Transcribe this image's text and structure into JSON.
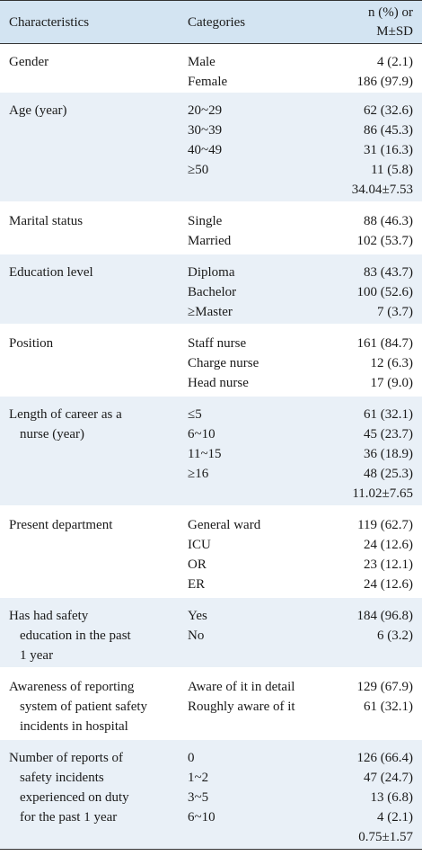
{
  "header": {
    "characteristics": "Characteristics",
    "categories": "Categories",
    "value_line1": "n (%) or",
    "value_line2": "M±SD"
  },
  "rows": [
    {
      "characteristic": [
        "Gender"
      ],
      "categories": [
        "Male",
        "Female"
      ],
      "values": [
        "4 (2.1)",
        "186 (97.9)"
      ],
      "shaded": false
    },
    {
      "characteristic": [
        "Age (year)"
      ],
      "categories": [
        "20~29",
        "30~39",
        "40~49",
        "≥50",
        ""
      ],
      "values": [
        "62 (32.6)",
        "86 (45.3)",
        "31 (16.3)",
        "11 (5.8)",
        "34.04±7.53"
      ],
      "shaded": true
    },
    {
      "characteristic": [
        "Marital status"
      ],
      "categories": [
        "Single",
        "Married"
      ],
      "values": [
        "88 (46.3)",
        "102 (53.7)"
      ],
      "shaded": false
    },
    {
      "characteristic": [
        "Education level"
      ],
      "categories": [
        "Diploma",
        "Bachelor",
        "≥Master"
      ],
      "values": [
        "83 (43.7)",
        "100 (52.6)",
        "7 (3.7)"
      ],
      "shaded": true
    },
    {
      "characteristic": [
        "Position"
      ],
      "categories": [
        "Staff nurse",
        "Charge nurse",
        "Head nurse"
      ],
      "values": [
        "161 (84.7)",
        "12 (6.3)",
        "17 (9.0)"
      ],
      "shaded": false
    },
    {
      "characteristic": [
        "Length of career as a",
        "nurse (year)"
      ],
      "categories": [
        "≤5",
        "6~10",
        "11~15",
        "≥16",
        ""
      ],
      "values": [
        "61 (32.1)",
        "45 (23.7)",
        "36 (18.9)",
        "48 (25.3)",
        "11.02±7.65"
      ],
      "shaded": true
    },
    {
      "characteristic": [
        "Present department"
      ],
      "categories": [
        "General ward",
        "ICU",
        "OR",
        "ER"
      ],
      "values": [
        "119 (62.7)",
        "24 (12.6)",
        "23 (12.1)",
        "24 (12.6)"
      ],
      "shaded": false
    },
    {
      "characteristic": [
        "Has had safety",
        "education in the past",
        "1 year"
      ],
      "categories": [
        "Yes",
        "No"
      ],
      "values": [
        "184 (96.8)",
        "6 (3.2)"
      ],
      "shaded": true
    },
    {
      "characteristic": [
        "Awareness of reporting",
        "system of patient safety",
        "incidents in hospital"
      ],
      "categories": [
        "Aware of it in detail",
        "Roughly aware of it"
      ],
      "values": [
        "129 (67.9)",
        "61 (32.1)"
      ],
      "shaded": false
    },
    {
      "characteristic": [
        "Number of reports of",
        "safety incidents",
        "experienced on duty",
        "for the past 1 year"
      ],
      "categories": [
        "0",
        "1~2",
        "3~5",
        "6~10",
        ""
      ],
      "values": [
        "126 (66.4)",
        "47 (24.7)",
        "13 (6.8)",
        "4 (2.1)",
        "0.75±1.57"
      ],
      "shaded": true
    }
  ]
}
